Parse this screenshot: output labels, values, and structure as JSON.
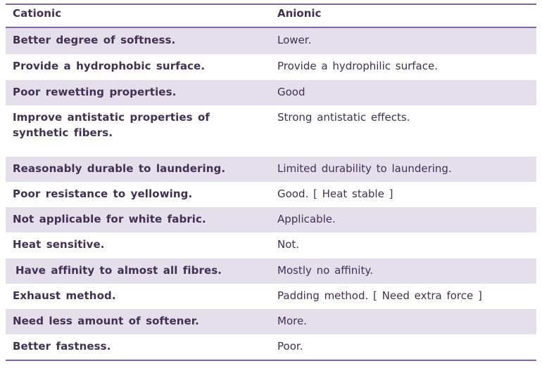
{
  "table": {
    "headers": {
      "left": "Cationic",
      "right": "Anionic"
    },
    "rows": [
      {
        "left": "Better degree of softness.",
        "right": "Lower."
      },
      {
        "left": "Provide a hydrophobic surface.",
        "right": "Provide a hydrophilic surface."
      },
      {
        "left": "Poor rewetting properties.",
        "right": "Good"
      },
      {
        "left": "Improve antistatic properties of synthetic fibers.",
        "right": "Strong antistatic effects."
      },
      {
        "left": "Reasonably durable to laundering.",
        "right": "Limited durability to laundering."
      },
      {
        "left": "Poor resistance to yellowing.",
        "right": "Good. [ Heat stable ]"
      },
      {
        "left": "Not applicable for white fabric.",
        "right": "Applicable."
      },
      {
        "left": "Heat sensitive.",
        "right": "Not."
      },
      {
        "left": "Have affinity to almost all fibres.",
        "right": "Mostly no affinity."
      },
      {
        "left": "Exhaust method.",
        "right": "Padding method. [ Need extra force ]"
      },
      {
        "left": "Need less amount of softener.",
        "right": "More."
      },
      {
        "left": "Better fastness.",
        "right": "Poor."
      }
    ]
  },
  "colors": {
    "border": "#8064a2",
    "shade": "#e5dfec",
    "text": "#403152"
  }
}
